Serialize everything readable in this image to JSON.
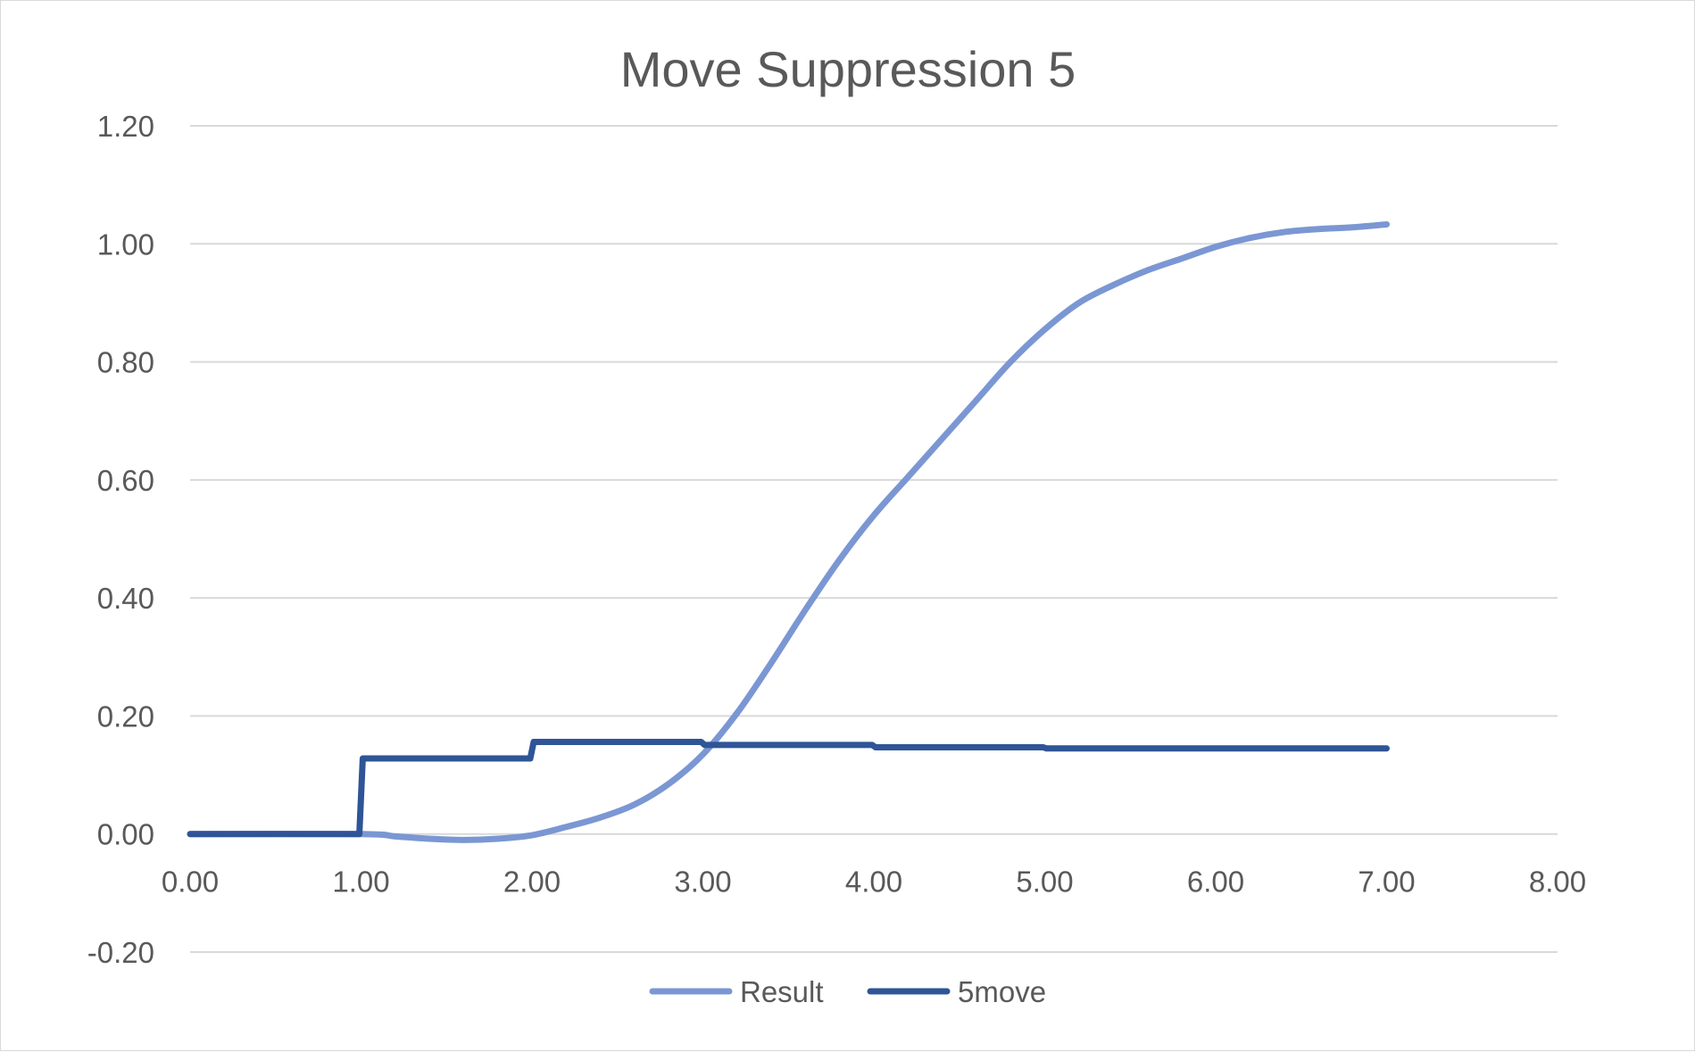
{
  "chart_data": {
    "type": "line",
    "title": "Move Suppression 5",
    "xlabel": "",
    "ylabel": "",
    "xlim": [
      0,
      8
    ],
    "ylim": [
      -0.2,
      1.2
    ],
    "x_ticks": [
      "0.00",
      "1.00",
      "2.00",
      "3.00",
      "4.00",
      "5.00",
      "6.00",
      "7.00",
      "8.00"
    ],
    "y_ticks": [
      "-0.20",
      "0.00",
      "0.20",
      "0.40",
      "0.60",
      "0.80",
      "1.00",
      "1.20"
    ],
    "grid": "horizontal",
    "legend_position": "bottom",
    "series": [
      {
        "name": "Result",
        "color": "#7b97d3",
        "x": [
          0,
          1.0,
          1.2,
          1.4,
          1.6,
          1.8,
          2.0,
          2.2,
          2.4,
          2.6,
          2.8,
          3.0,
          3.2,
          3.4,
          3.6,
          3.8,
          4.0,
          4.2,
          4.4,
          4.6,
          4.8,
          5.0,
          5.2,
          5.4,
          5.6,
          5.8,
          6.0,
          6.2,
          6.4,
          6.6,
          6.8,
          7.0
        ],
        "values": [
          0,
          0,
          -0.004,
          -0.008,
          -0.01,
          -0.008,
          -0.002,
          0.012,
          0.028,
          0.05,
          0.085,
          0.135,
          0.205,
          0.29,
          0.38,
          0.465,
          0.54,
          0.605,
          0.67,
          0.735,
          0.8,
          0.855,
          0.9,
          0.93,
          0.955,
          0.975,
          0.995,
          1.01,
          1.02,
          1.025,
          1.028,
          1.033
        ]
      },
      {
        "name": "5move",
        "color": "#2f5597",
        "x": [
          0,
          0.99,
          1.01,
          1.99,
          2.01,
          2.99,
          3.01,
          3.99,
          4.01,
          4.99,
          5.01,
          7.0
        ],
        "values": [
          0,
          0,
          0.128,
          0.128,
          0.156,
          0.156,
          0.151,
          0.151,
          0.147,
          0.147,
          0.145,
          0.145
        ]
      }
    ]
  }
}
